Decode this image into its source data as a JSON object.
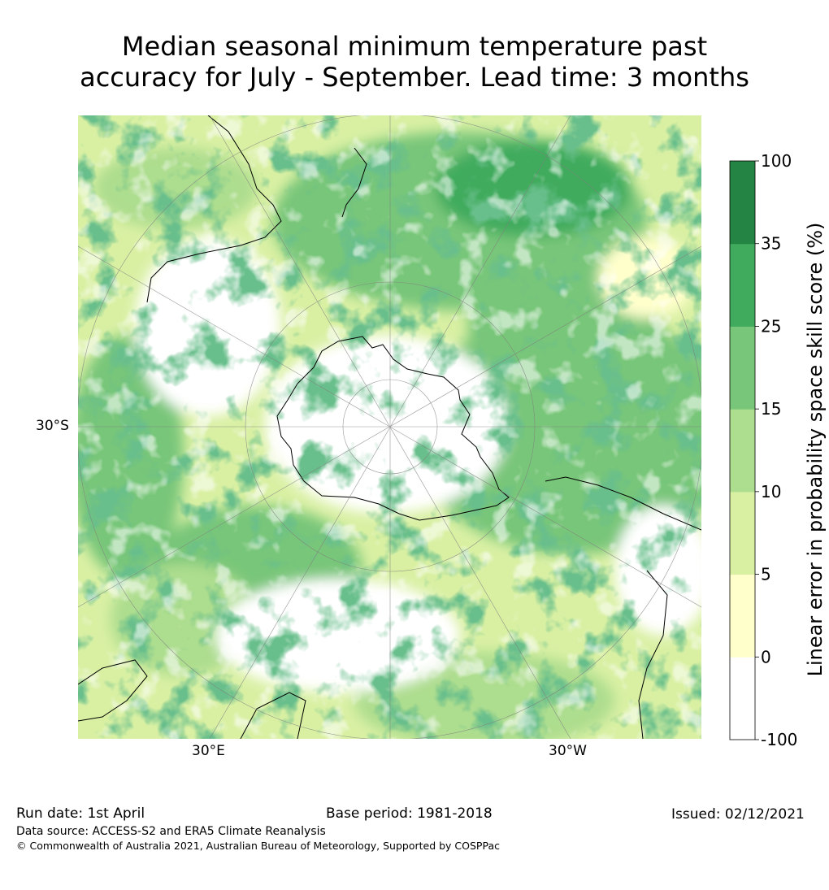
{
  "title": {
    "line1": "Median seasonal minimum temperature past",
    "line2": "accuracy for July - September. Lead time: 3 months"
  },
  "map": {
    "projection": "south-polar-stereographic",
    "lat_labels": [
      "30°S"
    ],
    "lon_labels": [
      "30°E",
      "30°W"
    ]
  },
  "colorbar": {
    "title": "Linear error in probability space skill score (%)",
    "tick_labels": [
      "100",
      "35",
      "25",
      "15",
      "10",
      "5",
      "0",
      "-100"
    ],
    "bins": [
      {
        "from": -100,
        "to": 0,
        "color": "#ffffff"
      },
      {
        "from": 0,
        "to": 5,
        "color": "#ffffcc"
      },
      {
        "from": 5,
        "to": 10,
        "color": "#d9f0a3"
      },
      {
        "from": 10,
        "to": 15,
        "color": "#addd8e"
      },
      {
        "from": 15,
        "to": 25,
        "color": "#78c679"
      },
      {
        "from": 25,
        "to": 35,
        "color": "#41ab5d"
      },
      {
        "from": 35,
        "to": 100,
        "color": "#238443"
      }
    ]
  },
  "footer": {
    "run_date": "Run date: 1st April",
    "base_period": "Base period: 1981-2018",
    "issued": "Issued: 02/12/2021",
    "data_source": "Data source: ACCESS-S2 and ERA5 Climate Reanalysis",
    "copyright": "© Commonwealth of Australia 2021, Australian Bureau of Meteorology, Supported by COSPPac"
  }
}
